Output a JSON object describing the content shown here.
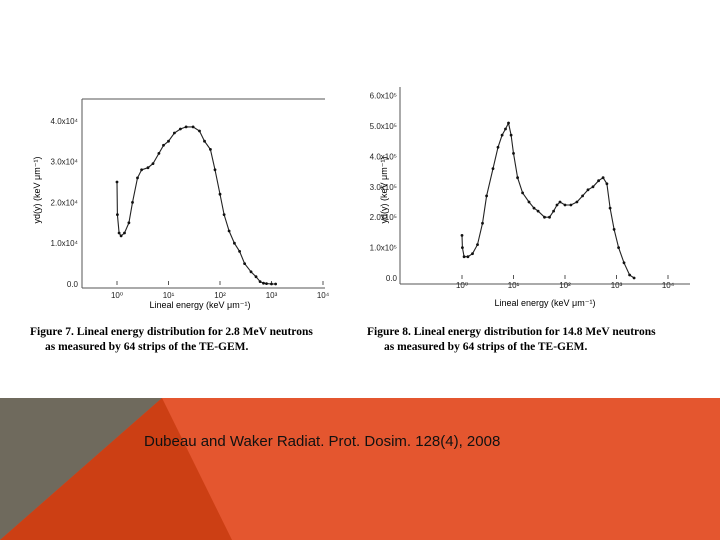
{
  "figures": [
    {
      "caption_line1": "Figure 7.  Lineal energy distribution for 2.8 MeV neutrons",
      "caption_line2": "as measured by 64 strips of the TE-GEM.",
      "ylabel": "yd(y) (keV μm⁻¹)",
      "xlabel": "Lineal energy (keV μm⁻¹)",
      "y_ticks": [
        "0.0",
        "1.0x10⁴",
        "2.0x10⁴",
        "3.0x10⁴",
        "4.0x10⁴"
      ],
      "x_ticks": [
        "10⁰",
        "10¹",
        "10²",
        "10³",
        "10⁴"
      ]
    },
    {
      "caption_line1": "Figure 8.  Lineal energy distribution for 14.8 MeV neutrons",
      "caption_line2": "as measured by 64 strips of the TE-GEM.",
      "ylabel": "yd(y) (keV μm⁻¹)",
      "xlabel": "Lineal energy (keV μm⁻¹)",
      "y_ticks": [
        "0.0",
        "1.0x10⁵",
        "2.0x10⁵",
        "3.0x10⁵",
        "4.0x10⁵",
        "5.0x10⁵",
        "6.0x10⁵"
      ],
      "x_ticks": [
        "10⁰",
        "10¹",
        "10²",
        "10³",
        "10⁴"
      ]
    }
  ],
  "citation": "Dubeau and Waker Radiat. Prot. Dosim. 128(4), 2008",
  "chart_data": [
    {
      "type": "scatter",
      "xscale": "log",
      "xlim": [
        0.3,
        10000
      ],
      "ylim": [
        0,
        46000
      ],
      "x": [
        1.0,
        1.02,
        1.1,
        1.2,
        1.4,
        1.7,
        2.0,
        2.5,
        3.0,
        4.0,
        5.0,
        6.5,
        8.0,
        10,
        13,
        17,
        22,
        30,
        40,
        50,
        65,
        80,
        100,
        120,
        150,
        190,
        240,
        300,
        400,
        500,
        600,
        700,
        800,
        1000,
        1200
      ],
      "y": [
        25000,
        17000,
        12500,
        11800,
        12500,
        15000,
        20000,
        26000,
        28000,
        28500,
        29500,
        32000,
        34000,
        35000,
        37000,
        38000,
        38500,
        38500,
        37500,
        35000,
        33000,
        28000,
        22000,
        17000,
        13000,
        10000,
        8000,
        5000,
        3000,
        1800,
        600,
        200,
        100,
        0,
        0
      ]
    },
    {
      "type": "scatter",
      "xscale": "log",
      "xlim": [
        0.3,
        10000
      ],
      "ylim": [
        0,
        620000
      ],
      "x": [
        1.0,
        1.02,
        1.1,
        1.3,
        1.6,
        2.0,
        2.5,
        3.0,
        4.0,
        5.0,
        6.0,
        7.0,
        8.0,
        9.0,
        10,
        12,
        15,
        20,
        25,
        30,
        40,
        50,
        60,
        70,
        80,
        100,
        130,
        170,
        220,
        280,
        350,
        450,
        550,
        650,
        750,
        900,
        1100,
        1400,
        1800,
        2200
      ],
      "y": [
        140000,
        100000,
        70000,
        70000,
        80000,
        110000,
        180000,
        270000,
        360000,
        430000,
        470000,
        490000,
        510000,
        470000,
        410000,
        330000,
        280000,
        250000,
        230000,
        220000,
        200000,
        200000,
        220000,
        240000,
        250000,
        240000,
        240000,
        250000,
        270000,
        290000,
        300000,
        320000,
        330000,
        310000,
        230000,
        160000,
        100000,
        50000,
        10000,
        0
      ]
    }
  ]
}
